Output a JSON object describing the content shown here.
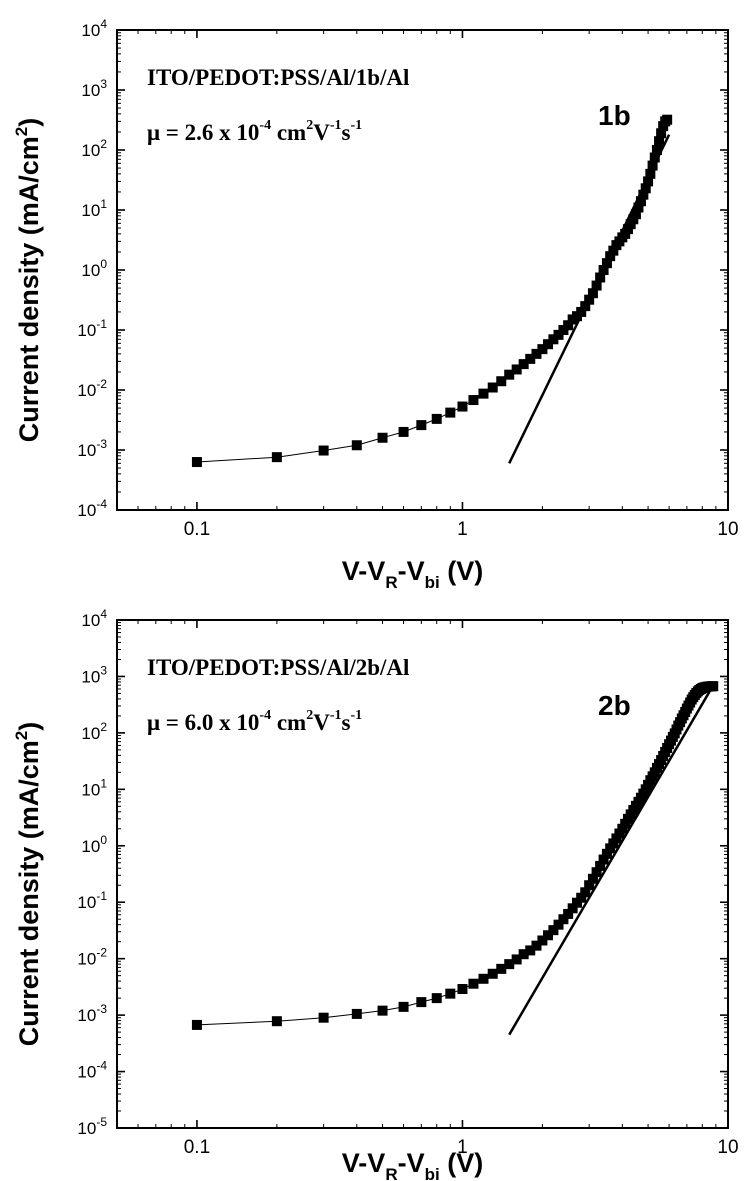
{
  "chart_data": [
    {
      "type": "scatter",
      "panel_label": "1b",
      "device": "ITO/PEDOT:PSS/Al/1b/Al",
      "mobility": {
        "prefix": "μ = 2.6 x 10",
        "exp": "-4",
        "unit_a": " cm",
        "unit_a_exp": "2",
        "unit_b": "V",
        "unit_b_exp": "-1",
        "unit_c": "s",
        "unit_c_exp": "-1"
      },
      "ylabel": {
        "main": "Current density",
        "unit_open": "(mA/cm",
        "unit_exp": "2",
        "unit_close": ")"
      },
      "xlabel": {
        "a": "V-V",
        "sub1": "R",
        "b": "-V",
        "sub2": "bi",
        "c": " (V)"
      },
      "xscale": "log",
      "yscale": "log",
      "xlim": [
        0.05,
        10
      ],
      "ylim_exp": [
        -4,
        4
      ],
      "xticks": [
        {
          "value": 0.1,
          "label": "0.1"
        },
        {
          "value": 1,
          "label": "1"
        },
        {
          "value": 10,
          "label": "10"
        }
      ],
      "yticks": [
        {
          "exp": -4,
          "label": "10"
        },
        {
          "exp": -3,
          "label": "10"
        },
        {
          "exp": -2,
          "label": "10"
        },
        {
          "exp": -1,
          "label": "10"
        },
        {
          "exp": 0,
          "label": "10"
        },
        {
          "exp": 1,
          "label": "10"
        },
        {
          "exp": 2,
          "label": "10"
        },
        {
          "exp": 3,
          "label": "10"
        },
        {
          "exp": 4,
          "label": "10"
        }
      ],
      "series": [
        {
          "kind": "measured",
          "marker": "square",
          "x": [
            0.1,
            0.2,
            0.3,
            0.4,
            0.5,
            0.6,
            0.7,
            0.8,
            0.9,
            1.0,
            1.1,
            1.2,
            1.3,
            1.4,
            1.5,
            1.6,
            1.7,
            1.8,
            1.9,
            2.0,
            2.1,
            2.2,
            2.3,
            2.4,
            2.5,
            2.6,
            2.7,
            2.8,
            2.9,
            3.0,
            3.1,
            3.2,
            3.3,
            3.4,
            3.5,
            3.6,
            3.7,
            3.8,
            3.9,
            4.0,
            4.1,
            4.2,
            4.3,
            4.4,
            4.5,
            4.6,
            4.7,
            4.8,
            4.9,
            5.0,
            5.1,
            5.2,
            5.3,
            5.4,
            5.5,
            5.6,
            5.7,
            5.8,
            5.9
          ],
          "y": [
            0.00063,
            0.00076,
            0.00098,
            0.0012,
            0.0016,
            0.002,
            0.0026,
            0.0033,
            0.0042,
            0.0053,
            0.0068,
            0.0087,
            0.011,
            0.014,
            0.018,
            0.022,
            0.027,
            0.033,
            0.04,
            0.048,
            0.058,
            0.07,
            0.083,
            0.1,
            0.12,
            0.15,
            0.17,
            0.2,
            0.25,
            0.32,
            0.41,
            0.55,
            0.75,
            1.0,
            1.3,
            1.7,
            2.1,
            2.6,
            3.0,
            3.5,
            4.0,
            4.8,
            5.8,
            7.0,
            8.5,
            11,
            14,
            18,
            23,
            30,
            40,
            55,
            75,
            100,
            140,
            190,
            250,
            300,
            320
          ]
        },
        {
          "kind": "fit",
          "x": [
            1.5,
            6.0
          ],
          "y": [
            0.0006,
            180
          ]
        }
      ]
    },
    {
      "type": "scatter",
      "panel_label": "2b",
      "device": "ITO/PEDOT:PSS/Al/2b/Al",
      "mobility": {
        "prefix": "μ = 6.0 x 10",
        "exp": "-4",
        "unit_a": " cm",
        "unit_a_exp": "2",
        "unit_b": "V",
        "unit_b_exp": "-1",
        "unit_c": "s",
        "unit_c_exp": "-1"
      },
      "ylabel": {
        "main": "Current density",
        "unit_open": "(mA/cm",
        "unit_exp": "2",
        "unit_close": ")"
      },
      "xlabel": {
        "a": "V-V",
        "sub1": "R",
        "b": "-V",
        "sub2": "bi",
        "c": " (V)"
      },
      "xscale": "log",
      "yscale": "log",
      "xlim": [
        0.05,
        10
      ],
      "ylim_exp": [
        -5,
        4
      ],
      "xticks": [
        {
          "value": 0.1,
          "label": "0.1"
        },
        {
          "value": 1,
          "label": "1"
        },
        {
          "value": 10,
          "label": "10"
        }
      ],
      "yticks": [
        {
          "exp": -5,
          "label": "10"
        },
        {
          "exp": -4,
          "label": "10"
        },
        {
          "exp": -3,
          "label": "10"
        },
        {
          "exp": -2,
          "label": "10"
        },
        {
          "exp": -1,
          "label": "10"
        },
        {
          "exp": 0,
          "label": "10"
        },
        {
          "exp": 1,
          "label": "10"
        },
        {
          "exp": 2,
          "label": "10"
        },
        {
          "exp": 3,
          "label": "10"
        },
        {
          "exp": 4,
          "label": "10"
        }
      ],
      "series": [
        {
          "kind": "measured",
          "marker": "square",
          "x": [
            0.1,
            0.2,
            0.3,
            0.4,
            0.5,
            0.6,
            0.7,
            0.8,
            0.9,
            1.0,
            1.1,
            1.2,
            1.3,
            1.4,
            1.5,
            1.6,
            1.7,
            1.8,
            1.9,
            2.0,
            2.1,
            2.2,
            2.3,
            2.4,
            2.5,
            2.6,
            2.7,
            2.8,
            2.9,
            3.0,
            3.1,
            3.2,
            3.3,
            3.4,
            3.5,
            3.6,
            3.7,
            3.8,
            3.9,
            4.0,
            4.1,
            4.2,
            4.3,
            4.4,
            4.5,
            4.6,
            4.7,
            4.8,
            4.9,
            5.0,
            5.1,
            5.2,
            5.3,
            5.4,
            5.5,
            5.6,
            5.7,
            5.8,
            5.9,
            6.0,
            6.1,
            6.2,
            6.3,
            6.4,
            6.5,
            6.6,
            6.7,
            6.8,
            6.9,
            7.0,
            7.1,
            7.2,
            7.3,
            7.4,
            7.5,
            7.6,
            7.7,
            7.8,
            7.9,
            8.0,
            8.1,
            8.2,
            8.3,
            8.4,
            8.5,
            8.6,
            8.7,
            8.8
          ],
          "y": [
            0.00067,
            0.00078,
            0.0009,
            0.00105,
            0.0012,
            0.0014,
            0.0017,
            0.002,
            0.0024,
            0.0029,
            0.0036,
            0.0044,
            0.0054,
            0.0066,
            0.008,
            0.0097,
            0.012,
            0.014,
            0.017,
            0.021,
            0.026,
            0.032,
            0.04,
            0.05,
            0.062,
            0.078,
            0.098,
            0.12,
            0.15,
            0.2,
            0.26,
            0.34,
            0.44,
            0.57,
            0.72,
            0.9,
            1.1,
            1.35,
            1.65,
            2.0,
            2.45,
            3.0,
            3.6,
            4.3,
            5.1,
            6.0,
            7.1,
            8.4,
            10,
            12,
            14.5,
            17,
            20,
            24,
            28,
            33,
            39,
            46,
            54,
            63,
            73,
            85,
            98,
            115,
            135,
            155,
            180,
            205,
            235,
            270,
            305,
            345,
            390,
            430,
            470,
            510,
            545,
            575,
            600,
            620,
            635,
            645,
            655,
            660,
            665,
            668,
            670,
            672
          ]
        },
        {
          "kind": "fit",
          "x": [
            1.5,
            8.8
          ],
          "y": [
            0.00045,
            700
          ]
        }
      ]
    }
  ]
}
